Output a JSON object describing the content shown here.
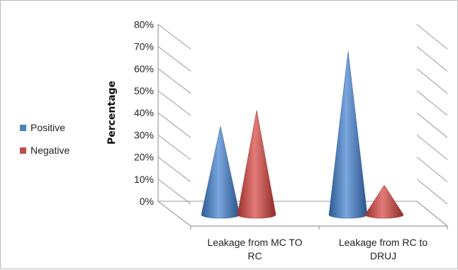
{
  "chart_data": {
    "type": "bar",
    "style": "3d-cone",
    "categories": [
      "Leakage from MC TO RC",
      "Leakage from RC to DRUJ"
    ],
    "category_lines": [
      [
        "Leakage from MC TO",
        "RC"
      ],
      [
        "Leakage from RC to",
        "DRUJ"
      ]
    ],
    "series": [
      {
        "name": "Positive",
        "color": "#4f81bd",
        "values": [
          39,
          72
        ]
      },
      {
        "name": "Negative",
        "color": "#c0504d",
        "values": [
          46,
          13
        ]
      }
    ],
    "ylabel": "Percentage",
    "ylim": [
      0,
      80
    ],
    "yticks": [
      "0%",
      "10%",
      "20%",
      "30%",
      "40%",
      "50%",
      "60%",
      "70%",
      "80%"
    ],
    "grid": true,
    "legend_position": "left"
  }
}
